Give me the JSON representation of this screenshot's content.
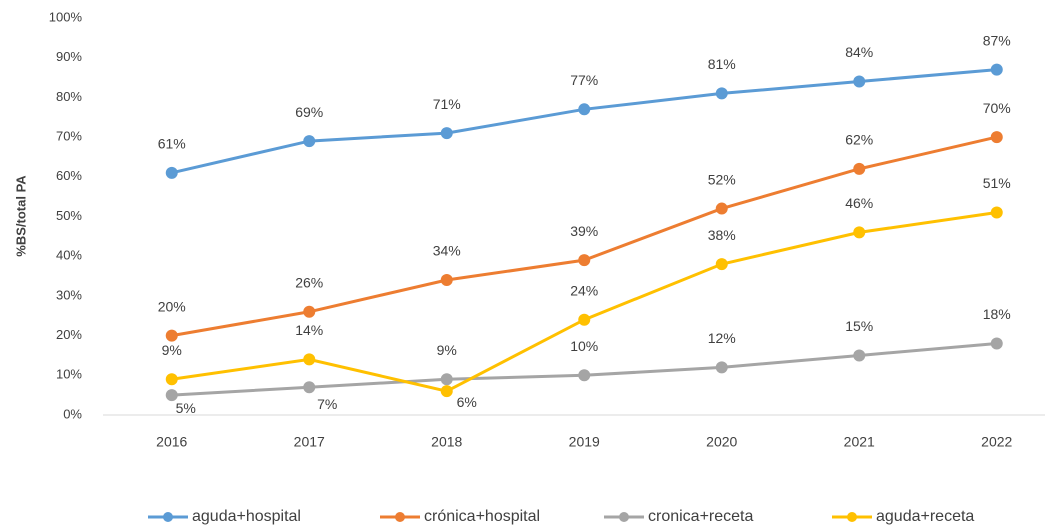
{
  "chart_data": {
    "type": "line",
    "y_label": "%BS/total PA",
    "categories": [
      "2016",
      "2017",
      "2018",
      "2019",
      "2020",
      "2021",
      "2022"
    ],
    "series": [
      {
        "name": "aguda+hospital",
        "color": "#5b9bd5",
        "values": [
          61,
          69,
          71,
          77,
          81,
          84,
          87
        ],
        "value_labels": [
          "61%",
          "69%",
          "71%",
          "77%",
          "81%",
          "84%",
          "87%"
        ]
      },
      {
        "name": "crónica+hospital",
        "color": "#ed7d31",
        "values": [
          20,
          26,
          34,
          39,
          52,
          62,
          70
        ],
        "value_labels": [
          "20%",
          "26%",
          "34%",
          "39%",
          "52%",
          "62%",
          "70%"
        ]
      },
      {
        "name": "cronica+receta",
        "color": "#a5a5a5",
        "values": [
          5,
          7,
          9,
          10,
          12,
          15,
          18
        ],
        "value_labels": [
          "5%",
          "7%",
          "9%",
          "10%",
          "12%",
          "15%",
          "18%"
        ]
      },
      {
        "name": "aguda+receta",
        "color": "#ffc000",
        "values": [
          9,
          14,
          6,
          24,
          38,
          46,
          51
        ],
        "value_labels": [
          "9%",
          "14%",
          "6%",
          "24%",
          "38%",
          "46%",
          "51%"
        ]
      }
    ],
    "ylim": [
      0,
      100
    ],
    "yticks": [
      {
        "value": 0,
        "label": "0%"
      },
      {
        "value": 10,
        "label": "10%"
      },
      {
        "value": 20,
        "label": "20%"
      },
      {
        "value": 30,
        "label": "30%"
      },
      {
        "value": 40,
        "label": "40%"
      },
      {
        "value": 50,
        "label": "50%"
      },
      {
        "value": 60,
        "label": "60%"
      },
      {
        "value": 70,
        "label": "70%"
      },
      {
        "value": 80,
        "label": "80%"
      },
      {
        "value": 90,
        "label": "90%"
      },
      {
        "value": 100,
        "label": "100%"
      }
    ],
    "grid": false,
    "legend": "bottom"
  }
}
